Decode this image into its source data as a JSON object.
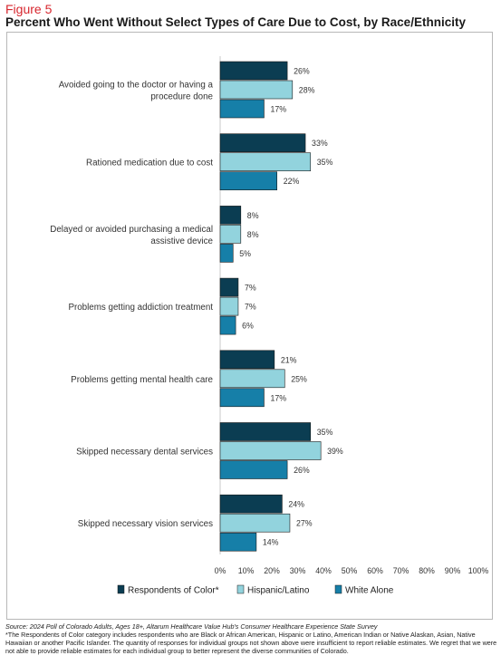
{
  "figure_label": "Figure 5",
  "title": "Percent Who Went Without Select Types of Care Due to Cost, by Race/Ethnicity",
  "footer": {
    "source": "Source: 2024 Poll of Colorado Adults, Ages 18+, Altarum Healthcare Value Hub's Consumer Healthcare Experience State Survey",
    "note": "*The Respondents of Color category includes respondents who are Black or African American, Hispanic or Latino, American Indian or Native Alaskan, Asian, Native Hawaiian or another Pacific Islander. The quantity of responses for individual groups not shown above were insufficient to report reliable estimates. We regret that we were not able to provide reliable estimates for each individual group to better represent the diverse communities of Colorado."
  },
  "colors": {
    "respondents_of_color": "#0b3d52",
    "hispanic_latino": "#92d3dd",
    "white_alone": "#167fa8"
  },
  "chart_data": {
    "type": "bar",
    "orientation": "horizontal",
    "title": "Percent Who Went Without Select Types of Care Due to Cost, by Race/Ethnicity",
    "categories": [
      [
        "Avoided going to the doctor or having a",
        "procedure done"
      ],
      [
        "Rationed medication due to cost"
      ],
      [
        "Delayed or avoided purchasing a medical",
        "assistive device"
      ],
      [
        "Problems getting addiction treatment"
      ],
      [
        "Problems getting mental health care"
      ],
      [
        "Skipped necessary dental services"
      ],
      [
        "Skipped necessary vision services"
      ]
    ],
    "series": [
      {
        "name": "Respondents of Color*",
        "values": [
          26,
          33,
          8,
          7,
          21,
          35,
          24
        ],
        "labels": [
          "26%",
          "33%",
          "8%",
          "7%",
          "21%",
          "35%",
          "24%"
        ]
      },
      {
        "name": "Hispanic/Latino",
        "values": [
          28,
          35,
          8,
          7,
          25,
          39,
          27
        ],
        "labels": [
          "28%",
          "35%",
          "8%",
          "7%",
          "25%",
          "39%",
          "27%"
        ]
      },
      {
        "name": "White Alone",
        "values": [
          17,
          22,
          5,
          6,
          17,
          26,
          14
        ],
        "labels": [
          "17%",
          "22%",
          "5%",
          "6%",
          "17%",
          "26%",
          "14%"
        ]
      }
    ],
    "x_ticks": [
      "0%",
      "10%",
      "20%",
      "30%",
      "40%",
      "50%",
      "60%",
      "70%",
      "80%",
      "90%",
      "100%"
    ],
    "xlim": [
      0,
      100
    ],
    "grid": false,
    "legend": "bottom"
  }
}
